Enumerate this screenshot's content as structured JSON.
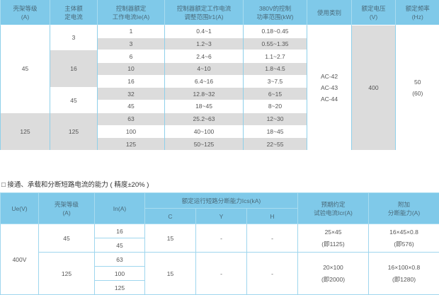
{
  "table1": {
    "headers": [
      "壳架等级\n(A)",
      "主体额\n定电流",
      "控制器额定\n工作电流Ie(A)",
      "控制器额定工作电流\n调整范围Ir1(A)",
      "380V的控制\n功率范围(kW)",
      "使用类别",
      "额定电压\n(V)",
      "额定频率\n(Hz)"
    ],
    "frame": [
      "45",
      "125"
    ],
    "main_current": [
      "3",
      "16",
      "45",
      "125"
    ],
    "rows": [
      [
        "1",
        "0.4~1",
        "0.18~0.45"
      ],
      [
        "3",
        "1.2~3",
        "0.55~1.35"
      ],
      [
        "6",
        "2.4~6",
        "1.1~2.7"
      ],
      [
        "10",
        "4~10",
        "1.8~4.5"
      ],
      [
        "16",
        "6.4~16",
        "3~7.5"
      ],
      [
        "32",
        "12.8~32",
        "6~15"
      ],
      [
        "45",
        "18~45",
        "8~20"
      ],
      [
        "63",
        "25.2~63",
        "12~30"
      ],
      [
        "100",
        "40~100",
        "18~45"
      ],
      [
        "125",
        "50~125",
        "22~55"
      ]
    ],
    "category": [
      "AC-42",
      "AC-43",
      "AC-44"
    ],
    "voltage": "400",
    "frequency": [
      "50",
      "(60)"
    ]
  },
  "caption": "□ 接通、承载和分断短路电流的能力 ( 精度±20% )",
  "table2": {
    "headers": {
      "ue": "Ue(V)",
      "frame": "壳架等级\n(A)",
      "in": "In(A)",
      "ics": "额定运行短路分断能力Ics(kA)",
      "c": "C",
      "y": "Y",
      "h": "H",
      "icr": "预期约定\n试验电流Icr(A)",
      "extra": "附加\n分断能力(A)"
    },
    "ue": "400V",
    "groups": [
      {
        "frame": "45",
        "in": [
          "16",
          "45"
        ],
        "c": "15",
        "y": "-",
        "h": "-",
        "icr": [
          "25×45",
          "(即1125)"
        ],
        "extra": [
          "16×45×0.8",
          "(即576)"
        ]
      },
      {
        "frame": "125",
        "in": [
          "63",
          "100",
          "125"
        ],
        "c": "15",
        "y": "-",
        "h": "-",
        "icr": [
          "20×100",
          "(即2000)"
        ],
        "extra": [
          "16×100×0.8",
          "(即1280)"
        ]
      }
    ]
  }
}
